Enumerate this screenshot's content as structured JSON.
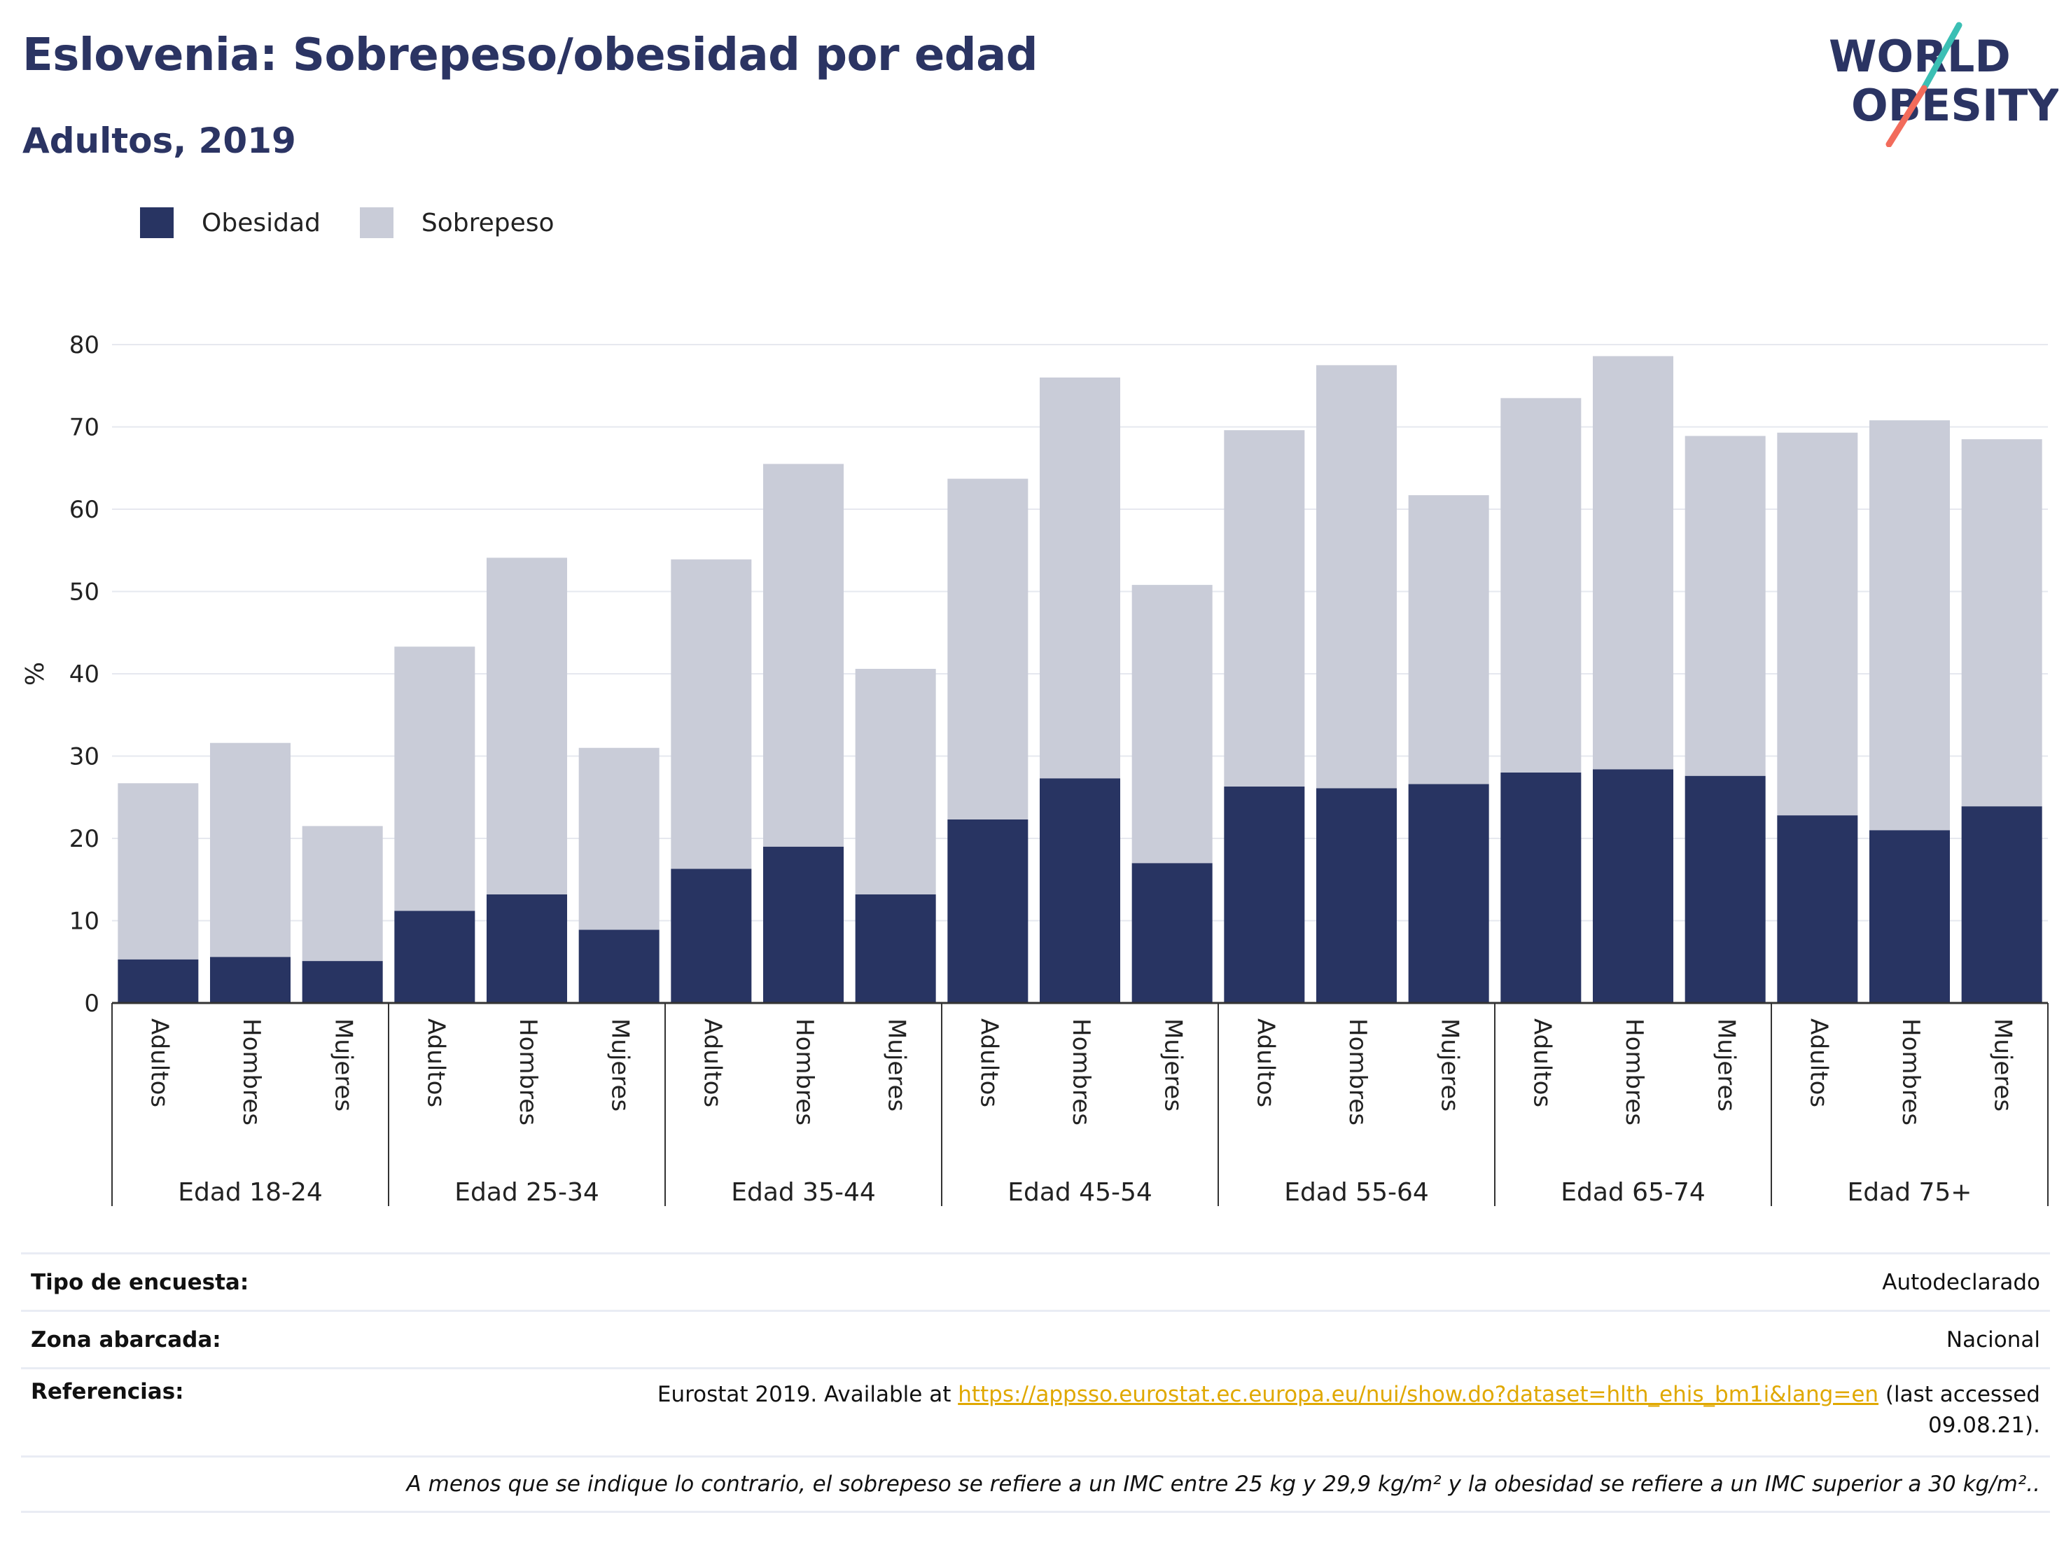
{
  "header": {
    "title": "Eslovenia: Sobrepeso/obesidad por edad",
    "subtitle": "Adultos, 2019"
  },
  "logo": {
    "line1": "WORLD",
    "line2": "OBESITY"
  },
  "colors": {
    "obesity": "#283462",
    "overweight": "#c9ccd8",
    "title": "#2b3463",
    "link": "#e0a800",
    "logo_teal": "#3bbfb4",
    "logo_coral": "#f26b5b"
  },
  "legend": {
    "obesity_label": "Obesidad",
    "overweight_label": "Sobrepeso"
  },
  "chart_data": {
    "type": "bar",
    "stacked": true,
    "ylabel": "%",
    "ylim": [
      0,
      80
    ],
    "yticks": [
      0,
      10,
      20,
      30,
      40,
      50,
      60,
      70,
      80
    ],
    "grid": true,
    "legend_position": "top-left",
    "groups": [
      "Edad 18-24",
      "Edad 25-34",
      "Edad 35-44",
      "Edad 45-54",
      "Edad 55-64",
      "Edad 65-74",
      "Edad 75+"
    ],
    "subcategories": [
      "Adultos",
      "Hombres",
      "Mujeres"
    ],
    "series": [
      {
        "name": "Obesidad",
        "values": [
          5.3,
          5.6,
          5.1,
          11.2,
          13.2,
          8.9,
          16.3,
          19.0,
          13.2,
          22.3,
          27.3,
          17.0,
          26.3,
          26.1,
          26.6,
          28.0,
          28.4,
          27.6,
          22.8,
          21.0,
          23.9
        ]
      },
      {
        "name": "Sobrepeso",
        "values": [
          21.4,
          26.0,
          16.4,
          32.1,
          40.9,
          22.1,
          37.6,
          46.5,
          27.4,
          41.4,
          48.7,
          33.8,
          43.3,
          51.4,
          35.1,
          45.5,
          50.2,
          41.3,
          46.5,
          49.8,
          44.6
        ]
      }
    ]
  },
  "info": {
    "survey_label": "Tipo de encuesta:",
    "survey_value": "Autodeclarado",
    "area_label": "Zona abarcada:",
    "area_value": "Nacional",
    "ref_label": "Referencias:",
    "ref_prefix": "Eurostat 2019. Available at ",
    "ref_link": "https://appsso.eurostat.ec.europa.eu/nui/show.do?dataset=hlth_ehis_bm1i&lang=en",
    "ref_suffix": " (last accessed 09.08.21).",
    "note": "A menos que se indique lo contrario, el sobrepeso se refiere a un IMC entre 25 kg y 29,9 kg/m² y la obesidad se refiere a un IMC superior a 30 kg/m².."
  }
}
